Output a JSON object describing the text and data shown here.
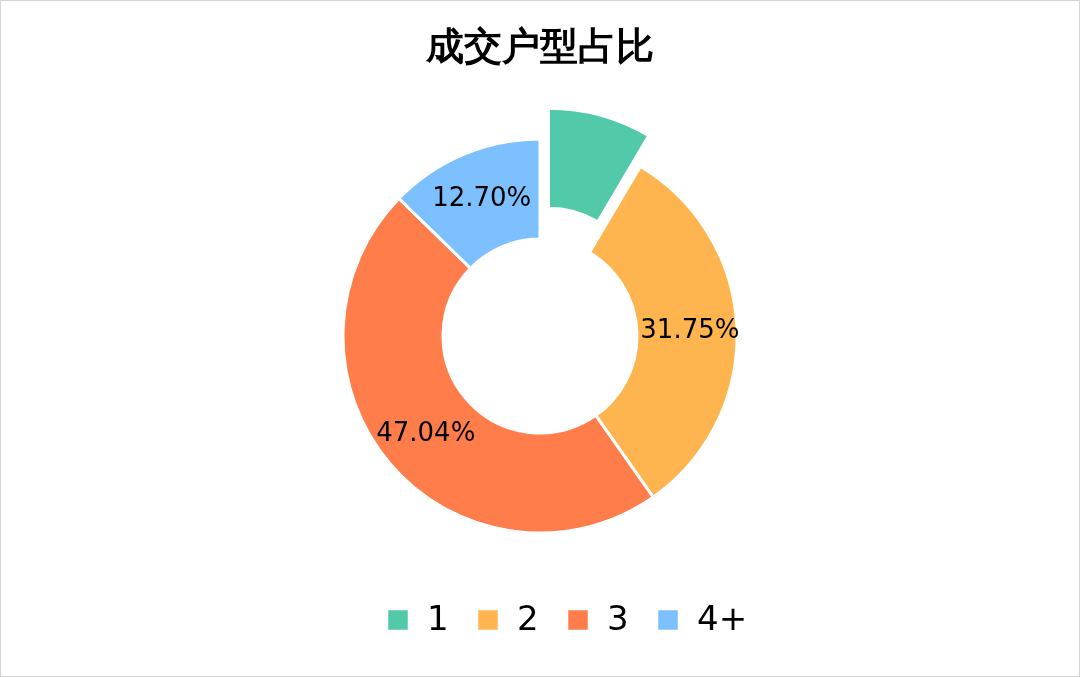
{
  "chart_data": {
    "type": "donut",
    "title": "成交户型占比",
    "categories": [
      "1",
      "2",
      "3",
      "4+"
    ],
    "values": [
      8.51,
      31.75,
      47.04,
      12.7
    ],
    "colors": [
      "#52c9a8",
      "#ffb54f",
      "#ff7d4a",
      "#7cc0ff"
    ],
    "value_labels": [
      null,
      "31.75%",
      "47.04%",
      "12.70%"
    ],
    "legend": "bottom"
  }
}
